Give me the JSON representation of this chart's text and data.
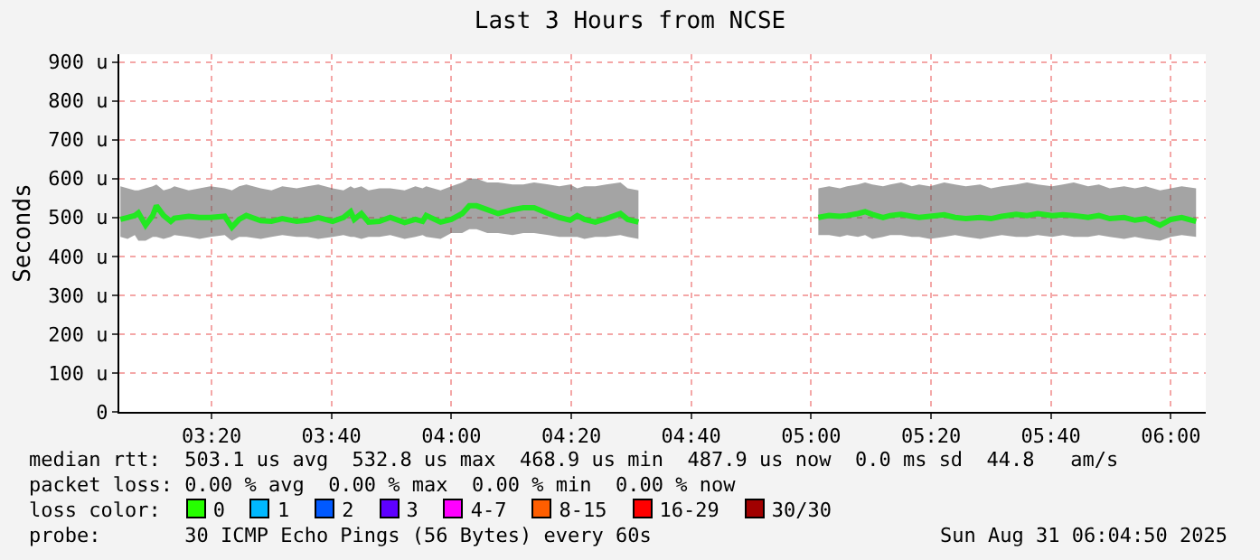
{
  "chart_data": {
    "type": "line",
    "title": "Last 3 Hours from NCSE",
    "ylabel": "Seconds",
    "x": [
      3.08,
      3.1,
      3.12,
      3.13,
      3.15,
      3.17,
      3.18,
      3.2,
      3.22,
      3.23,
      3.27,
      3.3,
      3.33,
      3.37,
      3.39,
      3.41,
      3.43,
      3.47,
      3.5,
      3.53,
      3.57,
      3.6,
      3.63,
      3.67,
      3.7,
      3.72,
      3.73,
      3.75,
      3.77,
      3.8,
      3.83,
      3.87,
      3.9,
      3.92,
      3.93,
      3.97,
      4.0,
      4.03,
      4.05,
      4.07,
      4.1,
      4.13,
      4.17,
      4.2,
      4.23,
      4.27,
      4.3,
      4.33,
      4.35,
      4.37,
      4.4,
      4.43,
      4.47,
      4.49,
      4.52,
      4.77,
      5.02,
      5.05,
      5.08,
      5.1,
      5.13,
      5.15,
      5.17,
      5.2,
      5.22,
      5.25,
      5.28,
      5.3,
      5.33,
      5.37,
      5.4,
      5.43,
      5.47,
      5.5,
      5.53,
      5.57,
      5.6,
      5.63,
      5.67,
      5.7,
      5.73,
      5.77,
      5.8,
      5.83,
      5.87,
      5.9,
      5.93,
      5.97,
      6.0,
      6.03,
      6.07
    ],
    "series": [
      {
        "color": "#22e822",
        "values": [
          495,
          500,
          505,
          512,
          480,
          505,
          530,
          505,
          490,
          498,
          503,
          500,
          500,
          503,
          475,
          495,
          505,
          492,
          490,
          497,
          490,
          493,
          500,
          490,
          500,
          515,
          495,
          510,
          488,
          490,
          500,
          487,
          495,
          490,
          505,
          488,
          495,
          510,
          530,
          530,
          520,
          510,
          520,
          525,
          525,
          510,
          500,
          493,
          505,
          495,
          488,
          497,
          510,
          495,
          488,
          null,
          500,
          505,
          503,
          505,
          510,
          515,
          508,
          500,
          505,
          508,
          503,
          500,
          503,
          507,
          500,
          497,
          500,
          497,
          503,
          508,
          505,
          510,
          505,
          507,
          505,
          500,
          505,
          497,
          500,
          493,
          497,
          480,
          495,
          500,
          490
        ],
        "lower": [
          450,
          445,
          455,
          440,
          440,
          450,
          450,
          445,
          450,
          455,
          450,
          445,
          450,
          455,
          440,
          450,
          450,
          445,
          450,
          455,
          450,
          450,
          445,
          450,
          455,
          450,
          450,
          445,
          450,
          450,
          455,
          445,
          450,
          455,
          450,
          445,
          460,
          460,
          470,
          470,
          460,
          460,
          455,
          460,
          460,
          455,
          450,
          450,
          450,
          445,
          450,
          450,
          455,
          450,
          445,
          null,
          455,
          455,
          450,
          455,
          450,
          455,
          445,
          450,
          455,
          455,
          450,
          450,
          445,
          450,
          455,
          450,
          445,
          450,
          455,
          450,
          450,
          455,
          450,
          455,
          450,
          450,
          455,
          450,
          445,
          450,
          445,
          440,
          450,
          455,
          450
        ],
        "upper": [
          580,
          575,
          570,
          570,
          575,
          580,
          585,
          570,
          575,
          580,
          570,
          575,
          580,
          575,
          570,
          580,
          585,
          575,
          570,
          580,
          575,
          580,
          585,
          575,
          570,
          580,
          575,
          580,
          570,
          575,
          575,
          570,
          580,
          575,
          580,
          570,
          580,
          590,
          600,
          600,
          590,
          590,
          585,
          585,
          590,
          585,
          580,
          585,
          575,
          580,
          580,
          585,
          590,
          575,
          570,
          null,
          575,
          580,
          575,
          580,
          585,
          590,
          585,
          580,
          585,
          590,
          580,
          585,
          580,
          590,
          585,
          580,
          585,
          575,
          580,
          585,
          590,
          585,
          580,
          585,
          590,
          580,
          585,
          575,
          580,
          575,
          580,
          570,
          575,
          580,
          575
        ]
      }
    ],
    "xlim": [
      3.077,
      6.097
    ],
    "xticks": [
      {
        "value": 3.3333,
        "label": "03:20"
      },
      {
        "value": 3.6667,
        "label": "03:40"
      },
      {
        "value": 4,
        "label": "04:00"
      },
      {
        "value": 4.3333,
        "label": "04:20"
      },
      {
        "value": 4.6667,
        "label": "04:40"
      },
      {
        "value": 5,
        "label": "05:00"
      },
      {
        "value": 5.3333,
        "label": "05:20"
      },
      {
        "value": 5.6667,
        "label": "05:40"
      },
      {
        "value": 6,
        "label": "06:00"
      }
    ],
    "ylim": [
      0,
      920
    ],
    "yticks": [
      0,
      {
        "value": 100,
        "label": "100 u"
      },
      {
        "value": 200,
        "label": "200 u"
      },
      {
        "value": 300,
        "label": "300 u"
      },
      {
        "value": 400,
        "label": "400 u"
      },
      {
        "value": 500,
        "label": "500 u"
      },
      {
        "value": 600,
        "label": "600 u"
      },
      {
        "value": 700,
        "label": "700 u"
      },
      {
        "value": 800,
        "label": "800 u"
      },
      {
        "value": 900,
        "label": "900 u"
      }
    ],
    "grid": true,
    "annotations": [
      "median rtt:  503.1 us avg  532.8 us max  468.9 us min  487.9 us now  0.0 ms sd  44.8   am/s",
      "packet loss: 0.00 % avg  0.00 % max  0.00 % min  0.00 % now",
      "loss color:",
      "0",
      "1",
      "2",
      "3",
      "4-7",
      "8-15",
      "16-29",
      "30/30",
      "probe:       30 ICMP Echo Pings (56 Bytes) every 60s",
      "Sun Aug 31 06:04:50 2025"
    ]
  }
}
